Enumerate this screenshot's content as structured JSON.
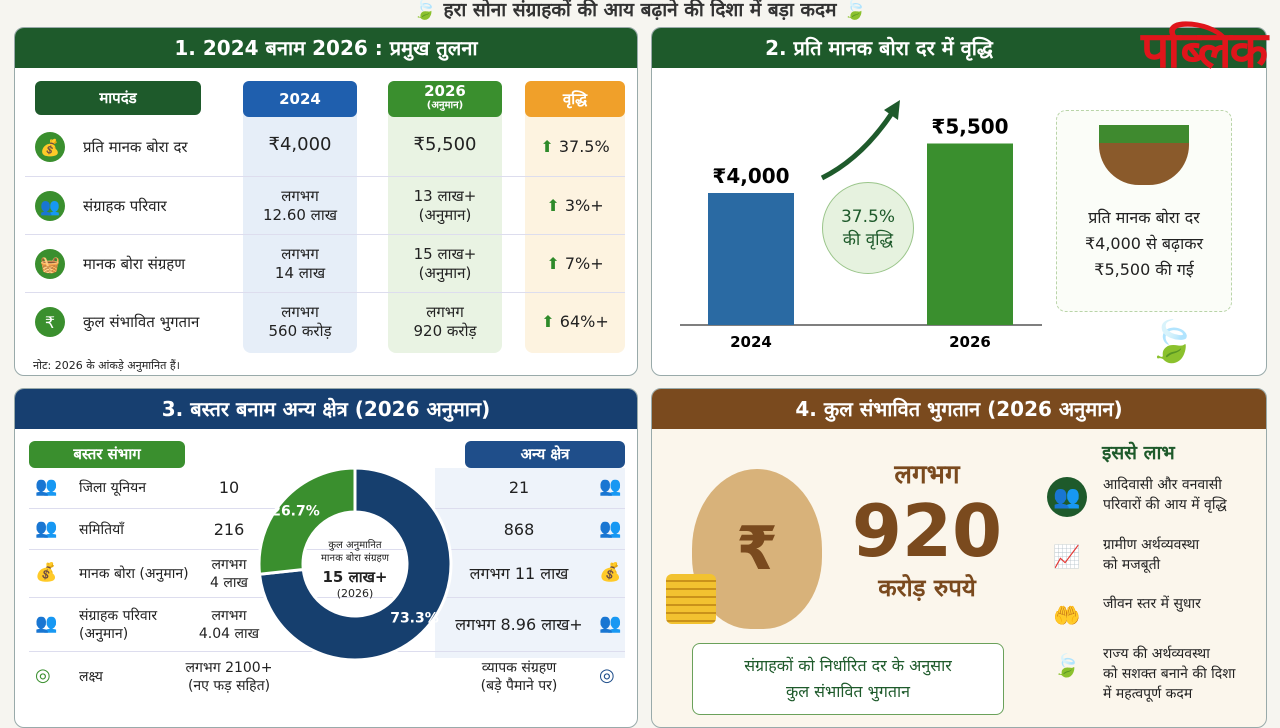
{
  "header": {
    "title": "हरा सोना संग्राहकों की आय बढ़ाने की दिशा में बड़ा कदम"
  },
  "watermark": "पब्लिक",
  "colors": {
    "green_dark": "#1e5a2b",
    "green": "#3a8f2e",
    "blue": "#1f4e8a",
    "orange": "#f0a02a",
    "brown": "#7a4a1e"
  },
  "panel1": {
    "title": "1. 2024 बनाम 2026 : प्रमुख तुलना",
    "headers": {
      "param": "मापदंड",
      "y2024": "2024",
      "y2026": "2026",
      "y2026_sub": "(अनुमान)",
      "growth": "वृद्धि"
    },
    "rows": [
      {
        "icon": "money-bag-icon",
        "label": "प्रति मानक बोरा दर",
        "v2024": "₹4,000",
        "v2026": "₹5,500",
        "growth": "37.5%"
      },
      {
        "icon": "people-icon",
        "label": "संग्राहक परिवार",
        "v2024": "लगभग\n12.60 लाख",
        "v2026": "13 लाख+\n(अनुमान)",
        "growth": "3%+"
      },
      {
        "icon": "basket-icon",
        "label": "मानक बोरा संग्रहण",
        "v2024": "लगभग\n14 लाख",
        "v2026": "15 लाख+\n(अनुमान)",
        "growth": "7%+"
      },
      {
        "icon": "rupee-icon",
        "label": "कुल संभावित भुगतान",
        "v2024": "लगभग\n560 करोड़",
        "v2026": "लगभग\n920 करोड़",
        "growth": "64%+"
      }
    ],
    "note": "नोट: 2026 के आंकड़े अनुमानित हैं।"
  },
  "panel2": {
    "title": "2. प्रति मानक बोरा दर में वृद्धि",
    "chart_data": {
      "type": "bar",
      "categories": [
        "2024",
        "2026"
      ],
      "values": [
        4000,
        5500
      ],
      "data_labels": [
        "₹4,000",
        "₹5,500"
      ],
      "ylim": [
        0,
        6000
      ]
    },
    "growth_badge": "37.5%\nकी वृद्धि",
    "info": "प्रति मानक बोरा दर\n₹4,000 से बढ़ाकर\n₹5,500 की गई"
  },
  "panel3": {
    "title": "3. बस्तर बनाम अन्य क्षेत्र (2026 अनुमान)",
    "left_header": "बस्तर संभाग",
    "right_header": "अन्य क्षेत्र",
    "rows": [
      {
        "label": "जिला यूनियन",
        "bastar": "10",
        "other": "21",
        "icon": "people-icon"
      },
      {
        "label": "समितियाँ",
        "bastar": "216",
        "other": "868",
        "icon": "people-icon"
      },
      {
        "label": "मानक बोरा (अनुमान)",
        "bastar": "लगभग\n4 लाख",
        "other": "लगभग 11 लाख",
        "icon": "money-bag-icon"
      },
      {
        "label": "संग्राहक परिवार\n(अनुमान)",
        "bastar": "लगभग\n4.04 लाख",
        "other": "लगभग 8.96 लाख+",
        "icon": "people-icon"
      },
      {
        "label": "लक्ष्य",
        "bastar": "लगभग 2100+\n(नए फड़ सहित)",
        "other": "व्यापक संग्रहण\n(बड़े पैमाने पर)",
        "icon": "target-icon"
      }
    ],
    "chart_data": {
      "type": "pie",
      "categories": [
        "बस्तर संभाग",
        "अन्य क्षेत्र"
      ],
      "values": [
        26.7,
        73.3
      ],
      "labels": [
        "26.7%",
        "73.3%"
      ]
    },
    "donut_center": {
      "line1": "कुल अनुमानित\nमानक बोरा संग्रहण",
      "value": "15 लाख+",
      "year": "(2026)"
    }
  },
  "panel4": {
    "title": "4. कुल संभावित भुगतान (2026 अनुमान)",
    "approx": "लगभग",
    "amount": "920",
    "unit": "करोड़ रुपये",
    "caption": "संग्राहकों को निर्धारित दर के अनुसार\nकुल संभावित भुगतान",
    "benefits_title": "इससे लाभ",
    "benefits": [
      {
        "icon": "people-icon",
        "text": "आदिवासी और वनवासी\nपरिवारों की आय में वृद्धि"
      },
      {
        "icon": "growth-chart-icon",
        "text": "ग्रामीण अर्थव्यवस्था\nको मजबूती"
      },
      {
        "icon": "hands-person-icon",
        "text": "जीवन स्तर में सुधार"
      },
      {
        "icon": "leaf-icon",
        "text": "राज्य की अर्थव्यवस्था\nको सशक्त बनाने की दिशा\nमें महत्वपूर्ण कदम"
      }
    ]
  }
}
